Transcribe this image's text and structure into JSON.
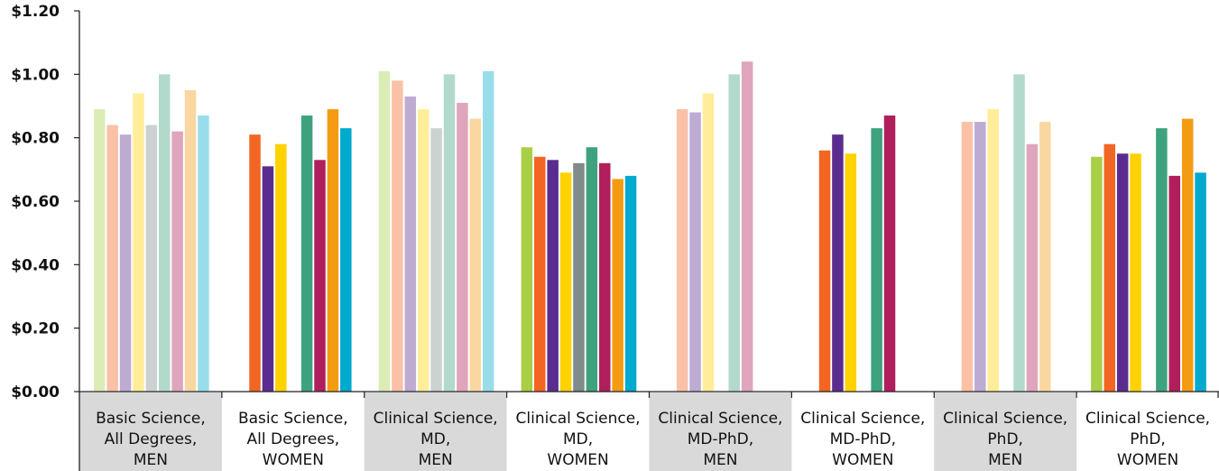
{
  "chart_data": {
    "type": "bar",
    "title": "",
    "xlabel": "",
    "ylabel": "",
    "ylim": [
      0,
      1.2
    ],
    "yticks": [
      "$0.00",
      "$0.20",
      "$0.40",
      "$0.60",
      "$0.80",
      "$1.00",
      "$1.20"
    ],
    "ytick_values": [
      0,
      0.2,
      0.4,
      0.6,
      0.8,
      1.0,
      1.2
    ],
    "grid": false,
    "legend": "none",
    "categories": [
      [
        "Basic Science,",
        "All Degrees,",
        "MEN"
      ],
      [
        "Basic Science,",
        "All Degrees,",
        "WOMEN"
      ],
      [
        "Clinical Science,",
        "MD,",
        "MEN"
      ],
      [
        "Clinical Science,",
        "MD,",
        "WOMEN"
      ],
      [
        "Clinical Science,",
        "MD-PhD,",
        "MEN"
      ],
      [
        "Clinical Science,",
        "MD-PhD,",
        "WOMEN"
      ],
      [
        "Clinical Science,",
        "PhD,",
        "MEN"
      ],
      [
        "Clinical Science,",
        "PhD,",
        "WOMEN"
      ]
    ],
    "category_shaded": [
      true,
      false,
      true,
      false,
      true,
      false,
      true,
      false
    ],
    "category_band_color": "#d9d9da",
    "series_colors": [
      "#a8cf45",
      "#f26522",
      "#5b2c8f",
      "#ffd200",
      "#808b8b",
      "#3fa27f",
      "#b01f5b",
      "#f39c12",
      "#00a9ce"
    ],
    "men_alpha": 0.4,
    "series_values": [
      [
        0.89,
        0.84,
        0.81,
        0.94,
        0.84,
        1.0,
        0.82,
        0.95,
        0.87
      ],
      [
        null,
        0.81,
        0.71,
        0.78,
        null,
        0.87,
        0.73,
        0.89,
        0.83
      ],
      [
        1.01,
        0.98,
        0.93,
        0.89,
        0.83,
        1.0,
        0.91,
        0.86,
        1.01
      ],
      [
        0.77,
        0.74,
        0.73,
        0.69,
        0.72,
        0.77,
        0.72,
        0.67,
        0.68
      ],
      [
        null,
        0.89,
        0.88,
        0.94,
        null,
        1.0,
        1.04,
        null,
        null
      ],
      [
        null,
        0.76,
        0.81,
        0.75,
        null,
        0.83,
        0.87,
        null,
        null
      ],
      [
        null,
        0.85,
        0.85,
        0.89,
        null,
        1.0,
        0.78,
        0.85,
        null
      ],
      [
        0.74,
        0.78,
        0.75,
        0.75,
        null,
        0.83,
        0.68,
        0.86,
        0.69
      ]
    ]
  }
}
